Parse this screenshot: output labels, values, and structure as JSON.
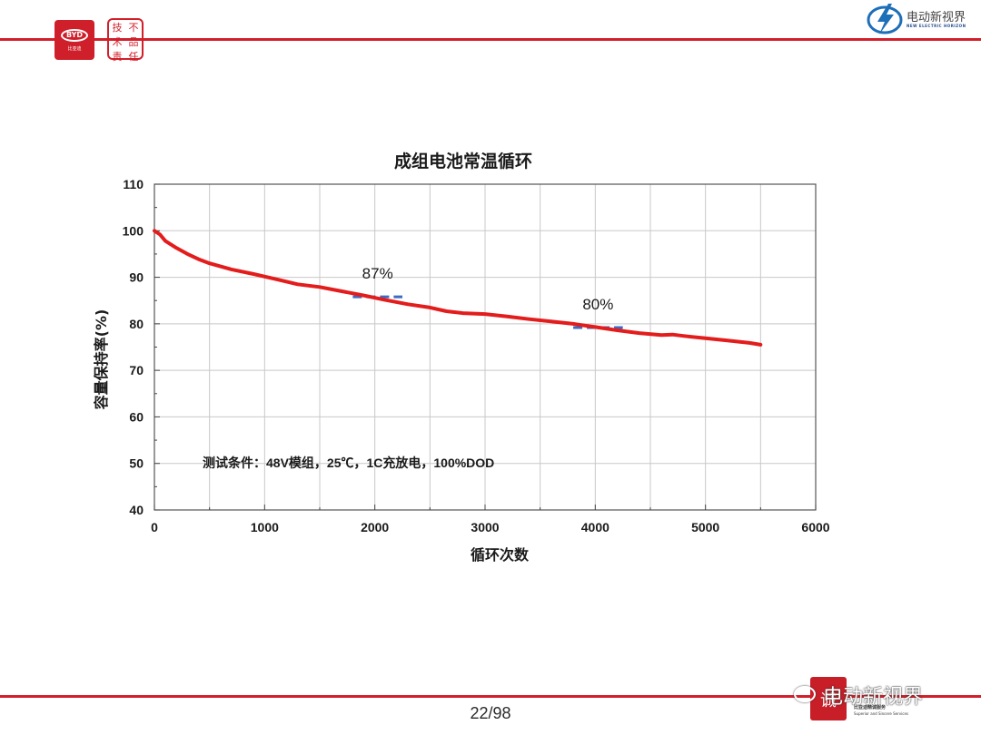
{
  "header": {
    "byd_logo_text": "BYD",
    "byd_logo_subtext": "比亚迪",
    "seal_chars": [
      "技",
      "不",
      "术",
      "品",
      "责",
      "任"
    ],
    "partner_logo_name": "电动新视界",
    "partner_logo_sub": "NEW ELECTRIC HORIZON"
  },
  "chart_data": {
    "type": "line",
    "title": "成组电池常温循环",
    "xlabel": "循环次数",
    "ylabel": "容量保持率(%)",
    "xlim": [
      0,
      6000
    ],
    "ylim": [
      40,
      110
    ],
    "xticks": [
      0,
      1000,
      2000,
      3000,
      4000,
      5000,
      6000
    ],
    "yticks": [
      40,
      50,
      60,
      70,
      80,
      90,
      100,
      110
    ],
    "grid": true,
    "series": [
      {
        "color": "#e31c1c",
        "x": [
          0,
          50,
          100,
          200,
          300,
          400,
          500,
          700,
          900,
          1100,
          1300,
          1500,
          1700,
          1900,
          2100,
          2300,
          2500,
          2650,
          2800,
          3000,
          3200,
          3400,
          3600,
          3800,
          4000,
          4200,
          4400,
          4600,
          4700,
          4800,
          5000,
          5200,
          5400,
          5500
        ],
        "y": [
          100,
          99.2,
          97.8,
          96.3,
          95,
          93.9,
          93,
          91.7,
          90.7,
          89.6,
          88.5,
          87.9,
          87,
          86.1,
          85.1,
          84.2,
          83.5,
          82.7,
          82.3,
          82.1,
          81.6,
          81,
          80.5,
          80,
          79.3,
          78.6,
          78,
          77.6,
          77.7,
          77.4,
          76.9,
          76.4,
          75.9,
          75.5
        ]
      }
    ],
    "markers": [
      {
        "label": "87%",
        "x_from": 1800,
        "x_to": 2250,
        "y": 85.8,
        "color": "#3b6bc4"
      },
      {
        "label": "80%",
        "x_from": 3800,
        "x_to": 4250,
        "y": 79.2,
        "color": "#3b6bc4"
      }
    ],
    "annotation": "测试条件：48V模组，25℃，1C充放电，100%DOD"
  },
  "footer": {
    "page": "22/98",
    "brand_seal_char": "诚",
    "brand_cn": "比亚迪精诚服务",
    "brand_en": "Superior and Sincere Services",
    "watermark": "电动新视界"
  }
}
